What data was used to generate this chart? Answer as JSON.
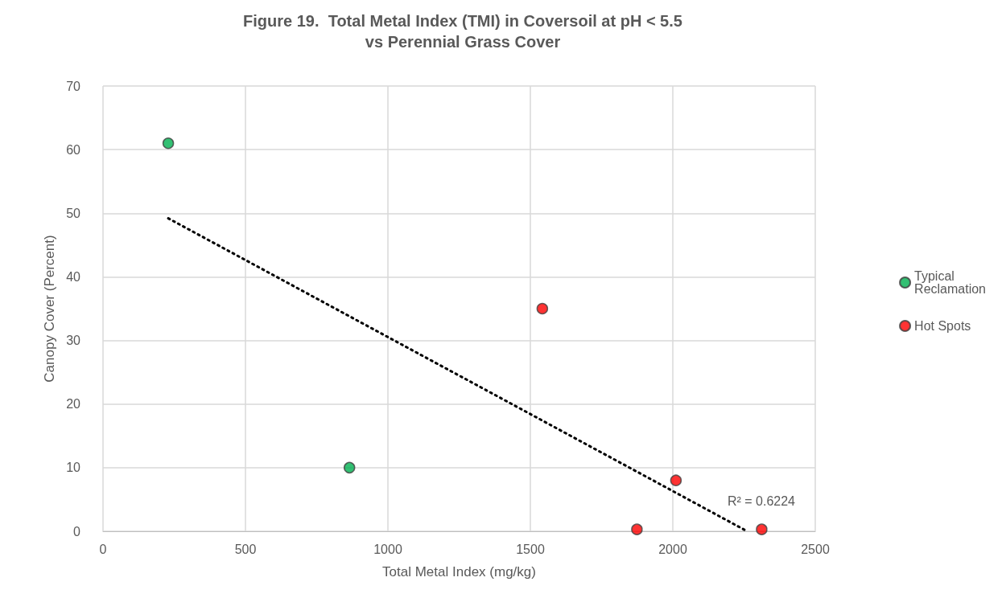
{
  "chart_data": {
    "type": "scatter",
    "title": "Figure 19.  Total Metal Index (TMI) in Coversoil at pH < 5.5\nvs Perennial Grass Cover",
    "xlabel": "Total Metal Index (mg/kg)",
    "ylabel": "Canopy Cover (Percent)",
    "series": [
      {
        "name": "Typical Reclamation",
        "color": "#00b050",
        "x": [
          229,
          865
        ],
        "values": [
          61,
          10
        ]
      },
      {
        "name": "Hot Spots",
        "color": "#ff0000",
        "x": [
          1542,
          2011,
          1874,
          2312
        ],
        "values": [
          35,
          8,
          0.3,
          0.3
        ]
      },
      {
        "type": "line",
        "color": "#000000",
        "line_style": "dotted",
        "marker": "none",
        "x": [
          229,
          2261
        ],
        "values": [
          49.2,
          0
        ]
      }
    ],
    "marker": "circle",
    "xlim": [
      0,
      2500
    ],
    "xticks": [
      0,
      500,
      1000,
      1500,
      2000,
      2500
    ],
    "ylim": [
      0,
      70
    ],
    "yticks": [
      0,
      10,
      20,
      30,
      40,
      50,
      60,
      70
    ],
    "grid": true,
    "legend": "right",
    "annotations": [
      "R² = 0.6224"
    ]
  }
}
